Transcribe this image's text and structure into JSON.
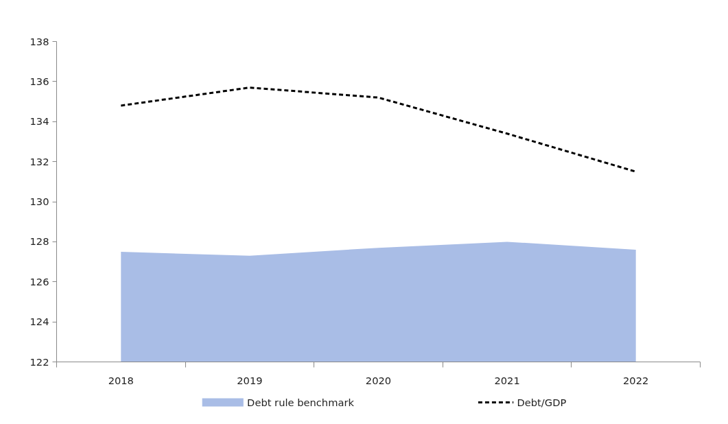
{
  "chart_data": {
    "type": "line",
    "categories": [
      "2018",
      "2019",
      "2020",
      "2021",
      "2022"
    ],
    "series": [
      {
        "name": "Debt rule benchmark",
        "type": "area",
        "color": "#a9bde6",
        "values": [
          127.5,
          127.3,
          127.7,
          128.0,
          127.6
        ]
      },
      {
        "name": "Debt/GDP",
        "color": "#000000",
        "line_style": "dashed",
        "values": [
          134.8,
          135.7,
          135.2,
          133.4,
          131.5
        ]
      }
    ],
    "ylim": [
      122,
      138
    ],
    "yticks": [
      122,
      124,
      126,
      128,
      130,
      132,
      134,
      136,
      138
    ],
    "grid": false,
    "legend": "bottom"
  }
}
